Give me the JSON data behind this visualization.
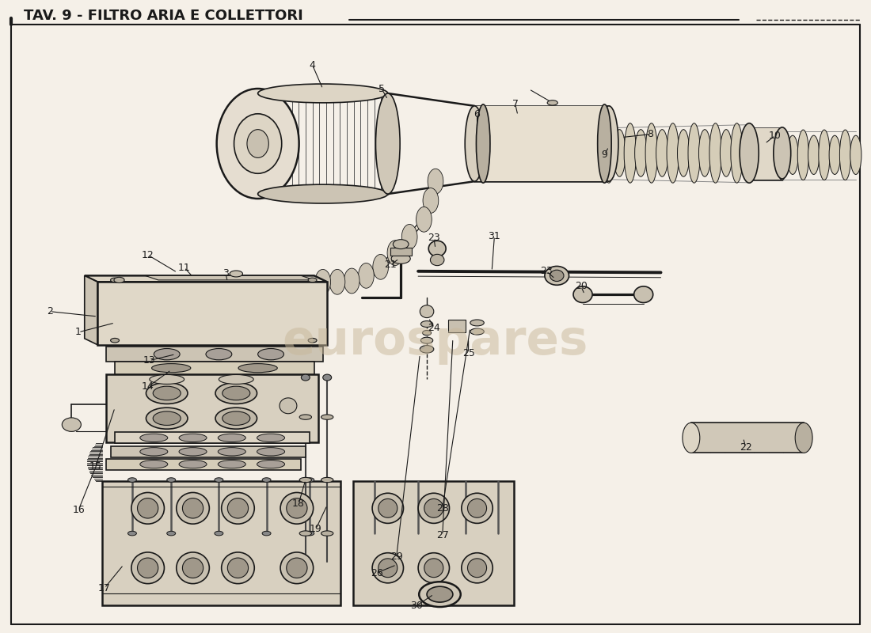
{
  "title": "TAV. 9 - FILTRO ARIA E COLLETTORI",
  "bg_color": "#f5f0e8",
  "line_color": "#1a1a1a",
  "watermark": "eurospares",
  "fig_width": 11.0,
  "fig_height": 8.0,
  "dpi": 100
}
